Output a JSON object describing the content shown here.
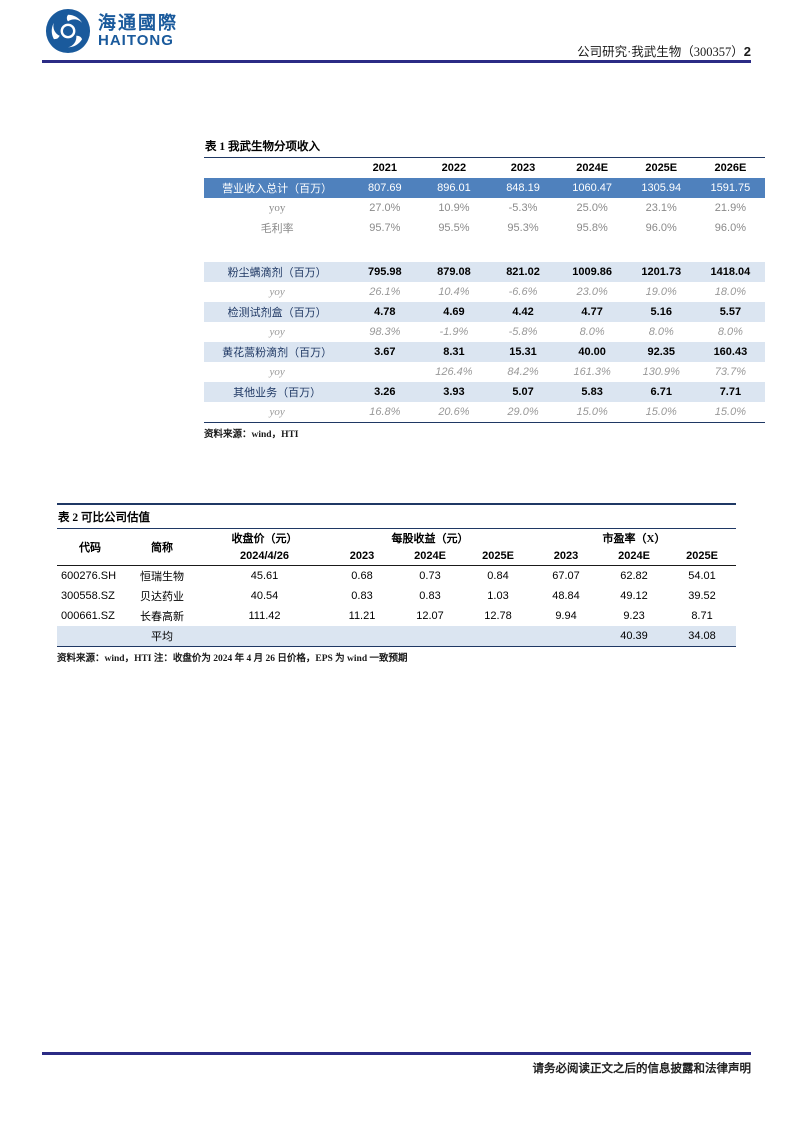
{
  "header": {
    "brand_cn": "海通國際",
    "brand_en": "HAITONG",
    "doc_info": "公司研究·我武生物（300357）",
    "page_number": "2"
  },
  "footer": {
    "disclaimer": "请务必阅读正文之后的信息披露和法律声明"
  },
  "colors": {
    "brand_blue": "#1a5a9c",
    "rule_navy": "#2b2b85",
    "table_border_navy": "#1f3864",
    "highlight_row_blue": "#4f81bd",
    "band_row_blue": "#dbe5f1",
    "muted_gray": "#8a8a8a"
  },
  "table1": {
    "title": "表 1 我武生物分项收入",
    "years": [
      "2021",
      "2022",
      "2023",
      "2024E",
      "2025E",
      "2026E"
    ],
    "rows": [
      {
        "label": "营业收入总计（百万）",
        "style": "highlight",
        "values": [
          "807.69",
          "896.01",
          "848.19",
          "1060.47",
          "1305.94",
          "1591.75"
        ]
      },
      {
        "label": "yoy",
        "style": "plain",
        "values": [
          "27.0%",
          "10.9%",
          "-5.3%",
          "25.0%",
          "23.1%",
          "21.9%"
        ]
      },
      {
        "label": "毛利率",
        "style": "plain",
        "values": [
          "95.7%",
          "95.5%",
          "95.3%",
          "95.8%",
          "96.0%",
          "96.0%"
        ]
      },
      {
        "label": "",
        "style": "spacer",
        "values": [
          "",
          "",
          "",
          "",
          "",
          ""
        ]
      },
      {
        "label": "粉尘螨滴剂（百万）",
        "style": "band",
        "values": [
          "795.98",
          "879.08",
          "821.02",
          "1009.86",
          "1201.73",
          "1418.04"
        ]
      },
      {
        "label": "yoy",
        "style": "yoy",
        "values": [
          "26.1%",
          "10.4%",
          "-6.6%",
          "23.0%",
          "19.0%",
          "18.0%"
        ]
      },
      {
        "label": "检测试剂盒（百万）",
        "style": "band",
        "values": [
          "4.78",
          "4.69",
          "4.42",
          "4.77",
          "5.16",
          "5.57"
        ]
      },
      {
        "label": "yoy",
        "style": "yoy",
        "values": [
          "98.3%",
          "-1.9%",
          "-5.8%",
          "8.0%",
          "8.0%",
          "8.0%"
        ]
      },
      {
        "label": "黄花蒿粉滴剂（百万）",
        "style": "band",
        "values": [
          "3.67",
          "8.31",
          "15.31",
          "40.00",
          "92.35",
          "160.43"
        ]
      },
      {
        "label": "yoy",
        "style": "yoy",
        "values": [
          "",
          "126.4%",
          "84.2%",
          "161.3%",
          "130.9%",
          "73.7%"
        ]
      },
      {
        "label": "其他业务（百万）",
        "style": "band",
        "values": [
          "3.26",
          "3.93",
          "5.07",
          "5.83",
          "6.71",
          "7.71"
        ]
      },
      {
        "label": "yoy",
        "style": "yoy",
        "values": [
          "16.8%",
          "20.6%",
          "29.0%",
          "15.0%",
          "15.0%",
          "15.0%"
        ]
      }
    ],
    "source": "资料来源：wind，HTI"
  },
  "table2": {
    "title": "表 2 可比公司估值",
    "header": {
      "code": "代码",
      "name": "简称",
      "close_group": "收盘价（元）",
      "close_sub": "2024/4/26",
      "eps_group": "每股收益（元）",
      "eps_cols": [
        "2023",
        "2024E",
        "2025E"
      ],
      "pe_group": "市盈率（X）",
      "pe_cols": [
        "2023",
        "2024E",
        "2025E"
      ]
    },
    "rows": [
      {
        "code": "600276.SH",
        "name": "恒瑞生物",
        "close": "45.61",
        "eps": [
          "0.68",
          "0.73",
          "0.84"
        ],
        "pe": [
          "67.07",
          "62.82",
          "54.01"
        ]
      },
      {
        "code": "300558.SZ",
        "name": "贝达药业",
        "close": "40.54",
        "eps": [
          "0.83",
          "0.83",
          "1.03"
        ],
        "pe": [
          "48.84",
          "49.12",
          "39.52"
        ]
      },
      {
        "code": "000661.SZ",
        "name": "长春高新",
        "close": "111.42",
        "eps": [
          "11.21",
          "12.07",
          "12.78"
        ],
        "pe": [
          "9.94",
          "9.23",
          "8.71"
        ]
      }
    ],
    "avg_row": {
      "label": "平均",
      "pe_2024e": "40.39",
      "pe_2025e": "34.08"
    },
    "source": "资料来源：wind，HTI 注：收盘价为 2024 年 4 月 26 日价格，EPS 为 wind 一致预期"
  }
}
